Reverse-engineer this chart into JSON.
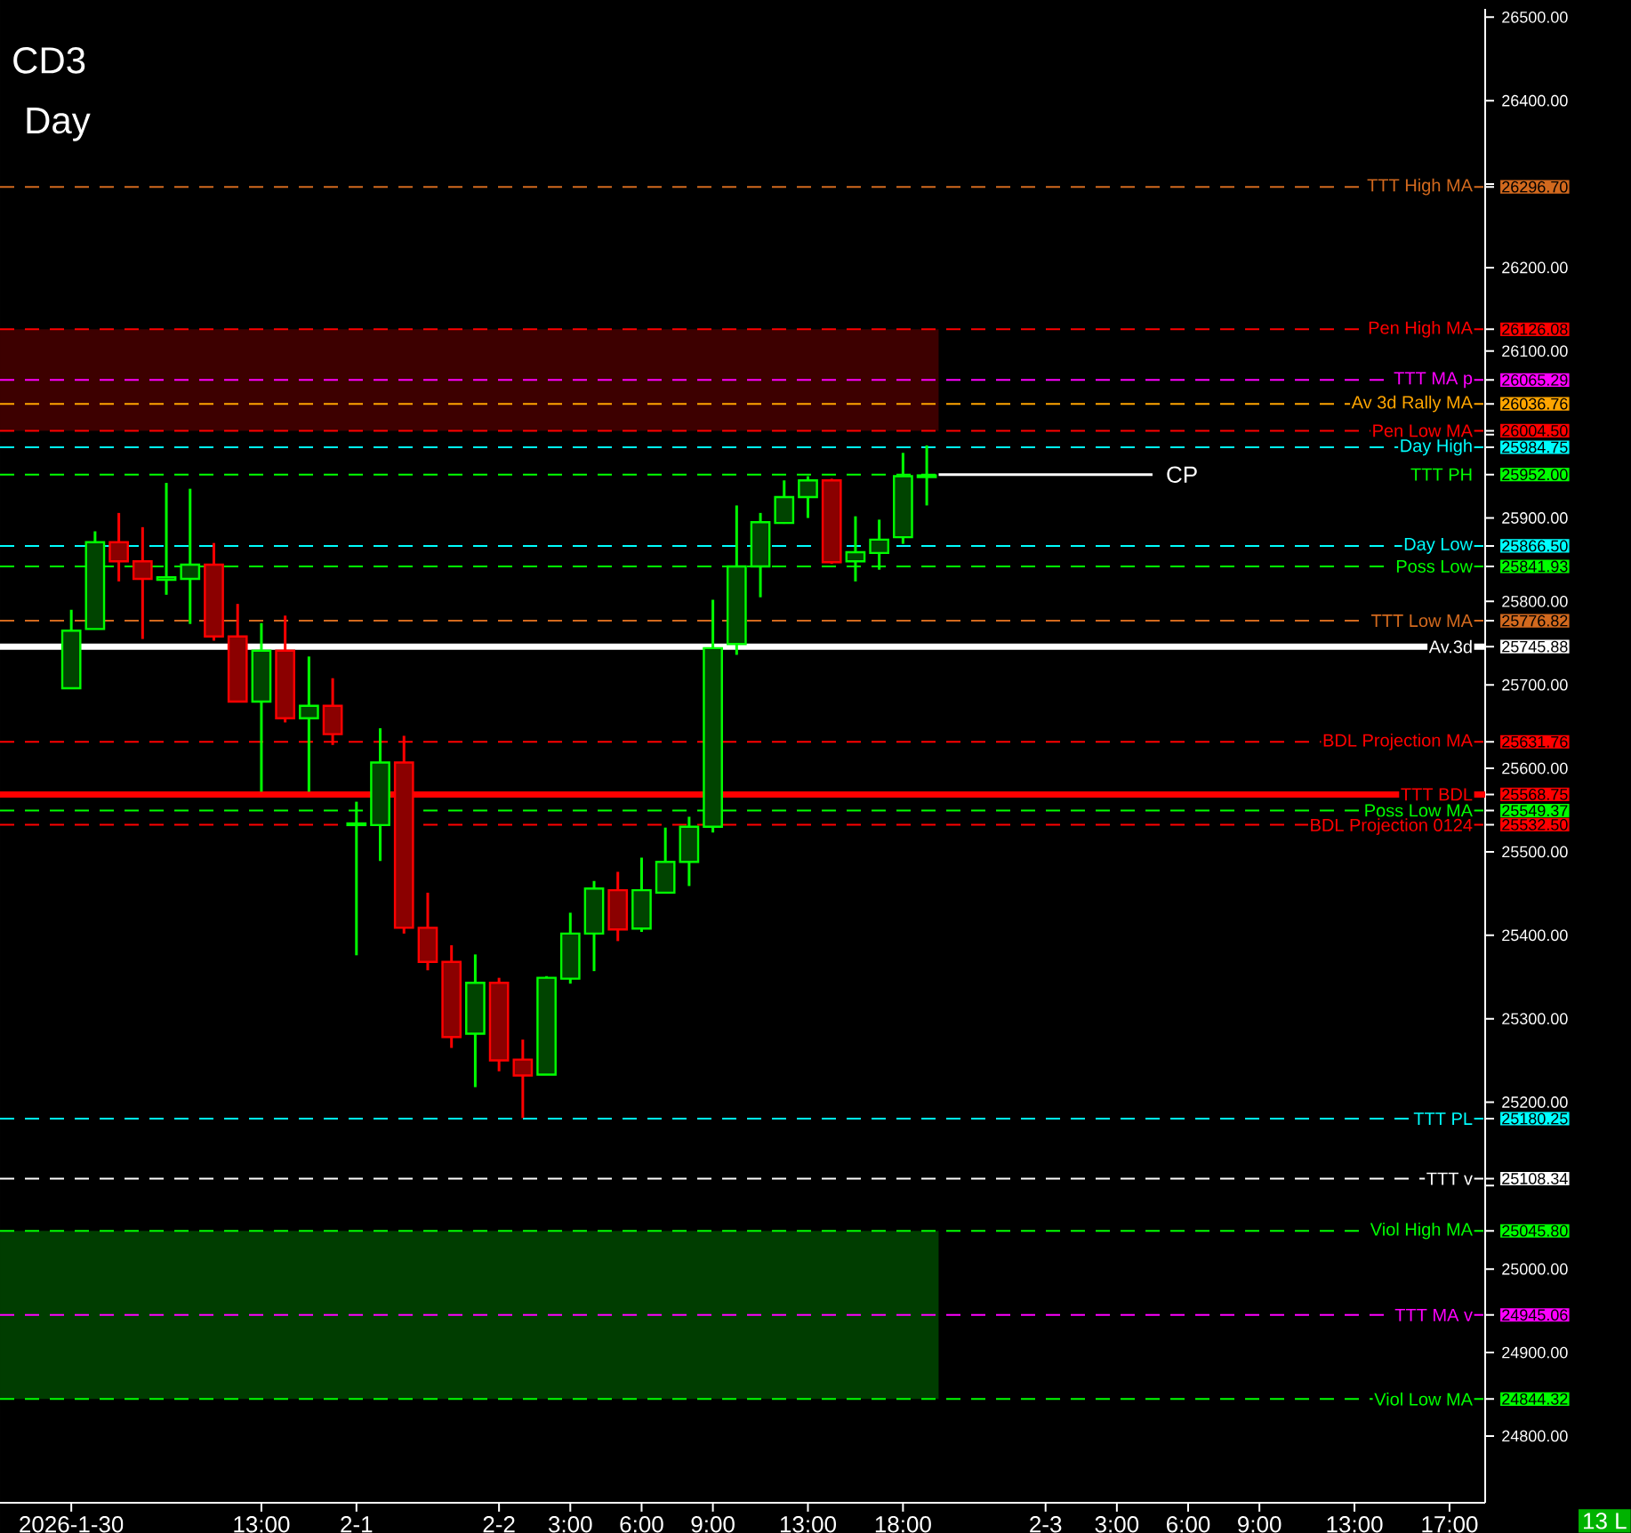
{
  "chart_data": {
    "type": "candlestick",
    "title": "CD3",
    "subtitle": "Day",
    "categories": [
      "2026-1-30",
      null,
      null,
      null,
      null,
      null,
      null,
      null,
      "13:00",
      null,
      null,
      null,
      "2-1",
      null,
      null,
      null,
      null,
      null,
      "2-2",
      null,
      null,
      "3:00",
      null,
      null,
      "6:00",
      null,
      null,
      "9:00",
      null,
      null,
      null,
      "13:00",
      null,
      null,
      null,
      "18:00",
      null,
      null,
      null,
      null,
      null,
      "2-3",
      null,
      null,
      "3:00",
      null,
      null,
      "6:00",
      null,
      null,
      "9:00",
      null,
      null,
      null,
      "13:00",
      null,
      null,
      null,
      "17:00",
      null
    ],
    "ohlc": [
      [
        25696,
        25790,
        25696,
        25765
      ],
      [
        25767,
        25884,
        25767,
        25871
      ],
      [
        25871,
        25906,
        25824,
        25848
      ],
      [
        25848,
        25889,
        25755,
        25827
      ],
      [
        25826,
        25942,
        25808,
        25829
      ],
      [
        25827,
        25935,
        25773,
        25844
      ],
      [
        25844,
        25870,
        25753,
        25758
      ],
      [
        25758,
        25797,
        25680,
        25680
      ],
      [
        25680,
        25774,
        25572,
        25741
      ],
      [
        25741,
        25783,
        25655,
        25660
      ],
      [
        25660,
        25734,
        25572,
        25675
      ],
      [
        25675,
        25708,
        25628,
        25641
      ],
      [
        25532,
        25560,
        25376,
        25534
      ],
      [
        25532,
        25648,
        25489,
        25607
      ],
      [
        25607,
        25639,
        25402,
        25409
      ],
      [
        25409,
        25451,
        25358,
        25368
      ],
      [
        25368,
        25388,
        25265,
        25278
      ],
      [
        25282,
        25377,
        25218,
        25343
      ],
      [
        25343,
        25349,
        25237,
        25250
      ],
      [
        25251,
        25275,
        25181,
        25232
      ],
      [
        25233,
        25351,
        25233,
        25349
      ],
      [
        25348,
        25427,
        25342,
        25402
      ],
      [
        25402,
        25465,
        25357,
        25456
      ],
      [
        25454,
        25476,
        25393,
        25407
      ],
      [
        25408,
        25493,
        25404,
        25454
      ],
      [
        25451,
        25529,
        25451,
        25488
      ],
      [
        25488,
        25542,
        25459,
        25530
      ],
      [
        25530,
        25802,
        25523,
        25744
      ],
      [
        25749,
        25915,
        25736,
        25842
      ],
      [
        25842,
        25906,
        25805,
        25895
      ],
      [
        25894,
        25945,
        25893,
        25925
      ],
      [
        25925,
        25950,
        25900,
        25945
      ],
      [
        25945,
        25947,
        25845,
        25847
      ],
      [
        25848,
        25902,
        25824,
        25859
      ],
      [
        25858,
        25898,
        25838,
        25874
      ],
      [
        25877,
        25978,
        25869,
        25950
      ],
      [
        25949,
        25987,
        25915,
        25951
      ],
      null,
      null,
      null,
      null,
      null,
      null,
      null,
      null,
      null,
      null,
      null,
      null,
      null,
      null,
      null,
      null,
      null,
      null,
      null,
      null,
      null,
      null,
      null
    ],
    "ylim": [
      24720,
      26510
    ],
    "yticks": [
      {
        "value": 26500,
        "label": "26500.00"
      },
      {
        "value": 26400,
        "label": "26400.00"
      },
      {
        "value": 26300,
        "label": null
      },
      {
        "value": 26200,
        "label": "26200.00"
      },
      {
        "value": 26100,
        "label": "26100.00"
      },
      {
        "value": 26000,
        "label": null
      },
      {
        "value": 25900,
        "label": "25900.00"
      },
      {
        "value": 25800,
        "label": "25800.00"
      },
      {
        "value": 25700,
        "label": "25700.00"
      },
      {
        "value": 25600,
        "label": "25600.00"
      },
      {
        "value": 25500,
        "label": "25500.00"
      },
      {
        "value": 25400,
        "label": "25400.00"
      },
      {
        "value": 25300,
        "label": "25300.00"
      },
      {
        "value": 25200,
        "label": "25200.00"
      },
      {
        "value": 25100,
        "label": null
      },
      {
        "value": 25000,
        "label": "25000.00"
      },
      {
        "value": 24900,
        "label": "24900.00"
      },
      {
        "value": 24800,
        "label": "24800.00"
      },
      {
        "value": 26296.7,
        "label": "26296.70"
      },
      {
        "value": 26126.08,
        "label": "26126.08"
      },
      {
        "value": 26065.29,
        "label": "26065.29"
      },
      {
        "value": 26036.76,
        "label": "26036.76"
      },
      {
        "value": 26004.5,
        "label": "26004.50"
      },
      {
        "value": 25984.75,
        "label": "25984.75"
      },
      {
        "value": 25952.0,
        "label": "25952.00"
      },
      {
        "value": 25866.5,
        "label": "25866.50"
      },
      {
        "value": 25841.93,
        "label": "25841.93"
      },
      {
        "value": 25776.82,
        "label": "25776.82"
      },
      {
        "value": 25745.88,
        "label": "25745.88"
      },
      {
        "value": 25631.76,
        "label": "25631.76"
      },
      {
        "value": 25568.75,
        "label": "25568.75"
      },
      {
        "value": 25549.37,
        "label": "25549.37"
      },
      {
        "value": 25532.5,
        "label": "25532.50"
      },
      {
        "value": 25180.25,
        "label": "25180.25"
      },
      {
        "value": 25108.34,
        "label": "25108.34"
      },
      {
        "value": 25045.8,
        "label": "25045.80"
      },
      {
        "value": 24945.06,
        "label": "24945.06"
      },
      {
        "value": 24844.32,
        "label": "24844.32"
      }
    ],
    "bands": [
      {
        "axis": "y",
        "from": 26004.5,
        "to": 26126.08,
        "color": "#3d0000"
      },
      {
        "axis": "y",
        "from": 24844.32,
        "to": 25045.8,
        "color": "#003d00"
      }
    ],
    "ref_lines": [
      {
        "axis": "y",
        "value": 26296.7,
        "label": "TTT High MA",
        "color": "#d2691e",
        "line_style": "dashed"
      },
      {
        "axis": "y",
        "value": 26126.08,
        "label": "Pen High MA",
        "color": "#ff0000",
        "line_style": "dashed"
      },
      {
        "axis": "y",
        "value": 26065.29,
        "label": "TTT MA p",
        "color": "#ff00ff",
        "line_style": "dashed"
      },
      {
        "axis": "y",
        "value": 26036.76,
        "label": "Av 3d Rally MA",
        "color": "#ffa500",
        "line_style": "dashed"
      },
      {
        "axis": "y",
        "value": 26004.5,
        "label": "Pen Low MA",
        "color": "#ff0000",
        "line_style": "dashed"
      },
      {
        "axis": "y",
        "value": 25984.75,
        "label": "Day High",
        "color": "#00ffff",
        "line_style": "dashed"
      },
      {
        "axis": "y",
        "value": 25952.0,
        "label": "TTT PH",
        "color": "#00ff00",
        "line_style": "dashed"
      },
      {
        "axis": "y",
        "value": 25866.5,
        "label": "Day Low",
        "color": "#00ffff",
        "line_style": "dashed"
      },
      {
        "axis": "y",
        "value": 25841.93,
        "label": "Poss Low",
        "color": "#00ff00",
        "line_style": "dashed"
      },
      {
        "axis": "y",
        "value": 25776.82,
        "label": "TTT Low MA",
        "color": "#d2691e",
        "line_style": "dashed"
      },
      {
        "axis": "y",
        "value": 25745.88,
        "label": "Av.3d",
        "color": "#ffffff",
        "line_style": "solid"
      },
      {
        "axis": "y",
        "value": 25631.76,
        "label": "BDL Projection MA",
        "color": "#ff0000",
        "line_style": "dashed"
      },
      {
        "axis": "y",
        "value": 25568.75,
        "label": "TTT BDL",
        "color": "#ff0000",
        "line_style": "solid"
      },
      {
        "axis": "y",
        "value": 25549.37,
        "label": "Poss Low MA",
        "color": "#00ff00",
        "line_style": "dashed"
      },
      {
        "axis": "y",
        "value": 25532.5,
        "label": "BDL Projection 0124",
        "color": "#ff0000",
        "line_style": "dashed"
      },
      {
        "axis": "y",
        "value": 25180.25,
        "label": "TTT PL",
        "color": "#00ffff",
        "line_style": "dashed"
      },
      {
        "axis": "y",
        "value": 25108.34,
        "label": "TTT v",
        "color": "#ffffff",
        "line_style": "dashed"
      },
      {
        "axis": "y",
        "value": 25045.8,
        "label": "Viol High MA",
        "color": "#00ff00",
        "line_style": "dashed"
      },
      {
        "axis": "y",
        "value": 24945.06,
        "label": "TTT MA v",
        "color": "#ff00ff",
        "line_style": "dashed"
      },
      {
        "axis": "y",
        "value": 24844.32,
        "label": "Viol Low MA",
        "color": "#00ff00",
        "line_style": "dashed"
      },
      {
        "axis": "y",
        "value": 25952,
        "label": "CP",
        "color": "#ffffff",
        "line_style": "solid"
      }
    ],
    "annotations": [
      "13 L"
    ]
  }
}
